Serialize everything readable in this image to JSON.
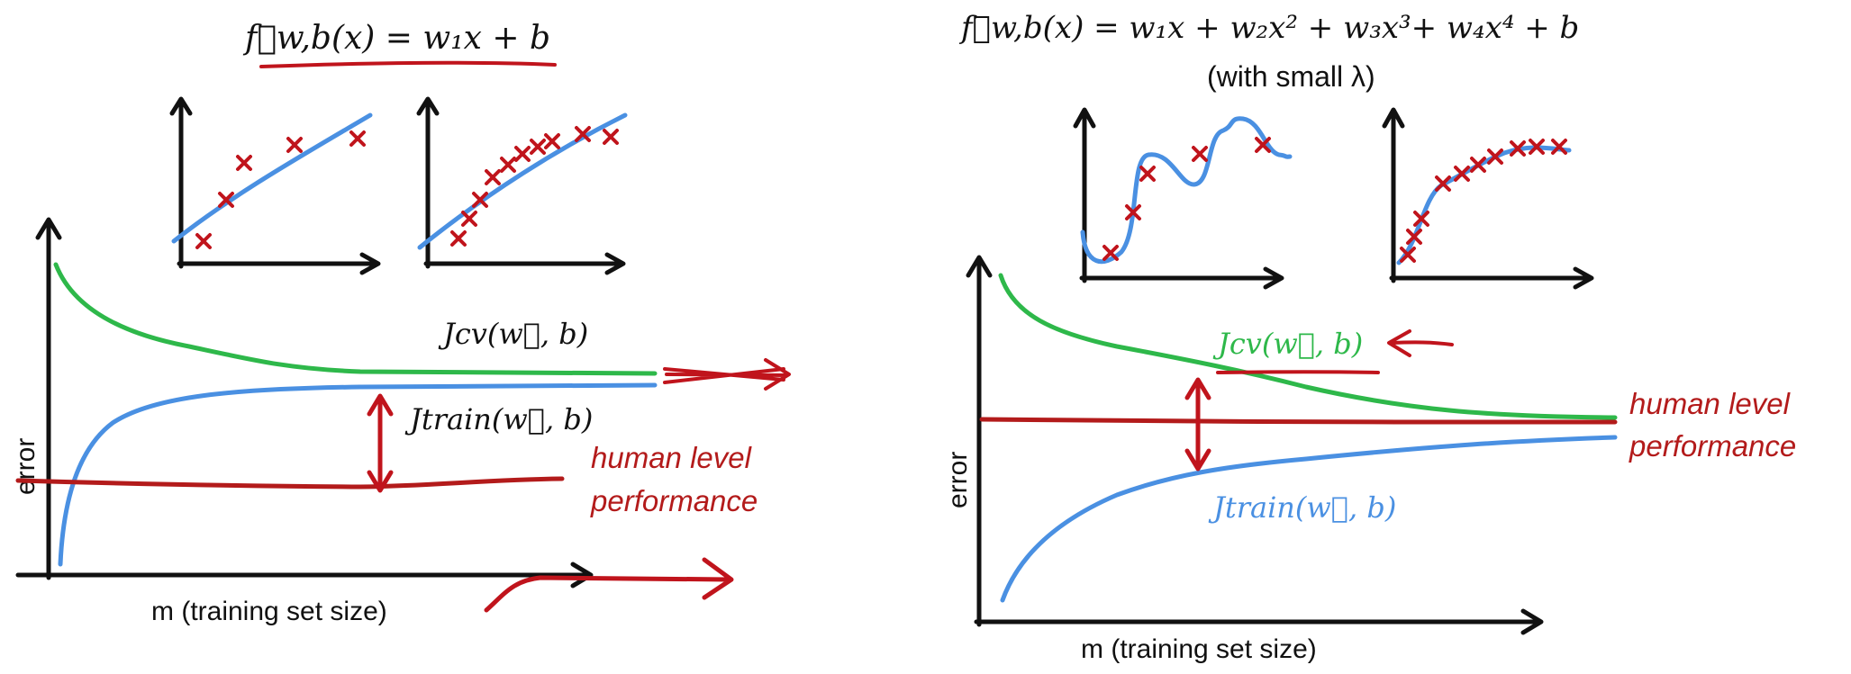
{
  "left": {
    "formula": "f⃗w,b(x) = w₁x + b",
    "curve_labels": {
      "cv": "Jcv(w⃗, b)",
      "train": "Jtrain(w⃗, b)"
    },
    "y_axis_label": "error",
    "x_axis_label": "m (training set size)",
    "human_level": [
      "human level",
      "performance"
    ]
  },
  "right": {
    "formula": "f⃗w,b(x) = w₁x + w₂x² + w₃x³+ w₄x⁴ + b",
    "formula_note": "(with small λ)",
    "curve_labels": {
      "cv": "Jcv(w⃗, b)",
      "train": "Jtrain(w⃗, b)"
    },
    "y_axis_label": "error",
    "x_axis_label": "m (training set size)",
    "human_level": [
      "human level",
      "performance"
    ]
  },
  "colors": {
    "axis": "#111111",
    "cv_curve": "#2eb84a",
    "train_curve": "#4a90e2",
    "human_level": "#b31b1b",
    "annotation": "#c0141c",
    "marker": "#c0141c"
  }
}
